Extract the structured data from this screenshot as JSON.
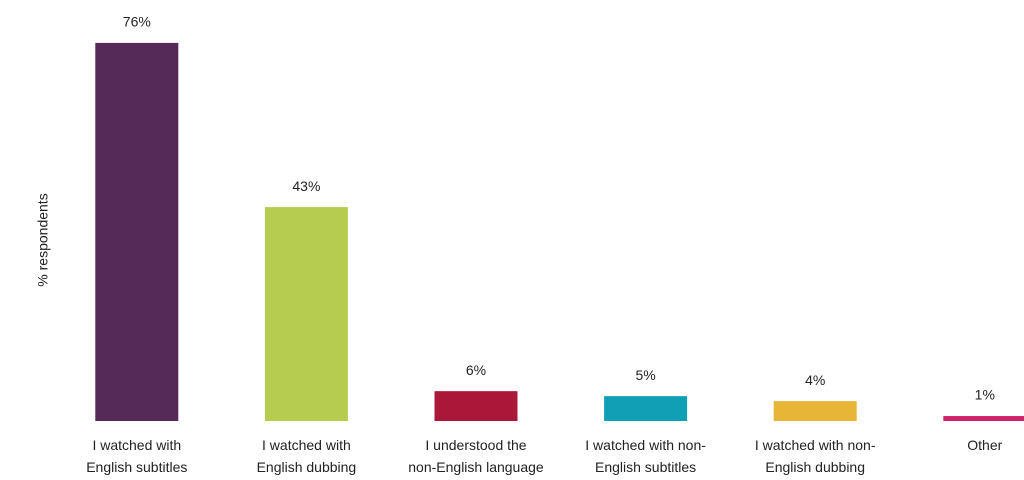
{
  "chart_data": {
    "type": "bar",
    "y_label": "% respondents",
    "categories": [
      "I watched with\nEnglish subtitles",
      "I watched with\nEnglish dubbing",
      "I understood the\nnon-English language",
      "I watched with non-\nEnglish subtitles",
      "I watched with non-\nEnglish dubbing",
      "Other"
    ],
    "values": [
      76,
      43,
      6,
      5,
      4,
      1
    ],
    "value_labels": [
      "76%",
      "43%",
      "6%",
      "5%",
      "4%",
      "1%"
    ],
    "colors": [
      "#552a58",
      "#b5cc4f",
      "#ab1738",
      "#109fb4",
      "#e8b637",
      "#d0246a"
    ],
    "ylim": [
      0,
      80
    ]
  }
}
